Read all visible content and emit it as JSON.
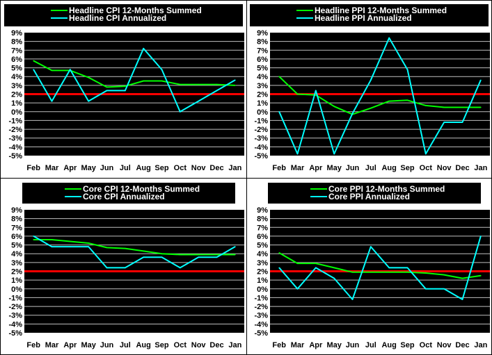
{
  "colors": {
    "summed": "#00ff00",
    "annualized": "#00ffff",
    "target_line": "#ff0000",
    "plot_bg": "#000000",
    "grid": "#c0c0c0"
  },
  "chart_data": [
    {
      "type": "line",
      "categories": [
        "Feb",
        "Mar",
        "Apr",
        "May",
        "Jun",
        "Jul",
        "Aug",
        "Sep",
        "Oct",
        "Nov",
        "Dec",
        "Jan"
      ],
      "ylim": [
        -5,
        9
      ],
      "yticks": [
        "9%",
        "8%",
        "7%",
        "6%",
        "5%",
        "4%",
        "3%",
        "2%",
        "1%",
        "0%",
        "-1%",
        "-2%",
        "-3%",
        "-4%",
        "-5%"
      ],
      "grid": true,
      "legend_placement": "top",
      "reference_line": 2,
      "series": [
        {
          "name": "Headline CPI 12-Months Summed",
          "values": [
            5.8,
            4.7,
            4.7,
            3.9,
            2.8,
            2.9,
            3.5,
            3.5,
            3.1,
            3.1,
            3.1,
            3.0
          ]
        },
        {
          "name": "Headline CPI Annualized",
          "values": [
            4.8,
            1.2,
            4.8,
            1.2,
            2.4,
            2.4,
            7.2,
            4.8,
            0.0,
            1.2,
            2.4,
            3.6
          ]
        }
      ]
    },
    {
      "type": "line",
      "categories": [
        "Feb",
        "Mar",
        "Apr",
        "May",
        "Jun",
        "Jul",
        "Aug",
        "Sep",
        "Oct",
        "Nov",
        "Dec",
        "Jan"
      ],
      "ylim": [
        -5,
        9
      ],
      "yticks": [
        "9%",
        "8%",
        "7%",
        "6%",
        "5%",
        "4%",
        "3%",
        "2%",
        "1%",
        "0%",
        "-1%",
        "-2%",
        "-3%",
        "-4%",
        "-5%"
      ],
      "grid": true,
      "legend_placement": "top",
      "reference_line": 2,
      "series": [
        {
          "name": "Headline PPI 12-Months Summed",
          "values": [
            4.0,
            2.0,
            1.9,
            0.6,
            -0.3,
            0.4,
            1.2,
            1.3,
            0.7,
            0.5,
            0.5,
            0.5
          ]
        },
        {
          "name": "Headline PPI Annualized",
          "values": [
            0.0,
            -4.8,
            2.4,
            -4.8,
            -0.2,
            3.6,
            8.4,
            4.8,
            -4.8,
            -1.2,
            -1.2,
            3.6
          ]
        }
      ]
    },
    {
      "type": "line",
      "categories": [
        "Feb",
        "Mar",
        "Apr",
        "May",
        "Jun",
        "Jul",
        "Aug",
        "Sep",
        "Oct",
        "Nov",
        "Dec",
        "Jan"
      ],
      "ylim": [
        -5,
        9
      ],
      "yticks": [
        "9%",
        "8%",
        "7%",
        "6%",
        "5%",
        "4%",
        "3%",
        "2%",
        "1%",
        "0%",
        "-1%",
        "-2%",
        "-3%",
        "-4%",
        "-5%"
      ],
      "grid": true,
      "legend_placement": "top",
      "reference_line": 2,
      "series": [
        {
          "name": "Core CPI 12-Months Summed",
          "values": [
            5.6,
            5.6,
            5.4,
            5.2,
            4.7,
            4.6,
            4.3,
            4.0,
            3.9,
            3.9,
            3.9,
            3.9
          ]
        },
        {
          "name": "Core CPI Annualized",
          "values": [
            6.0,
            4.8,
            4.8,
            4.8,
            2.4,
            2.4,
            3.6,
            3.6,
            2.4,
            3.6,
            3.6,
            4.8
          ]
        }
      ]
    },
    {
      "type": "line",
      "categories": [
        "Feb",
        "Mar",
        "Apr",
        "May",
        "Jun",
        "Jul",
        "Aug",
        "Sep",
        "Oct",
        "Nov",
        "Dec",
        "Jan"
      ],
      "ylim": [
        -5,
        9
      ],
      "yticks": [
        "9%",
        "8%",
        "7%",
        "6%",
        "5%",
        "4%",
        "3%",
        "2%",
        "1%",
        "0%",
        "-1%",
        "-2%",
        "-3%",
        "-4%",
        "-5%"
      ],
      "grid": true,
      "legend_placement": "top",
      "reference_line": 2,
      "series": [
        {
          "name": "Core PPI 12-Months Summed",
          "values": [
            4.1,
            2.9,
            2.9,
            2.4,
            1.9,
            1.9,
            1.9,
            1.9,
            1.8,
            1.6,
            1.2,
            1.5
          ]
        },
        {
          "name": "Core PPI Annualized",
          "values": [
            2.4,
            0.0,
            2.4,
            1.2,
            -1.2,
            4.8,
            2.4,
            2.4,
            0.0,
            0.0,
            -1.2,
            6.0
          ]
        }
      ]
    }
  ]
}
